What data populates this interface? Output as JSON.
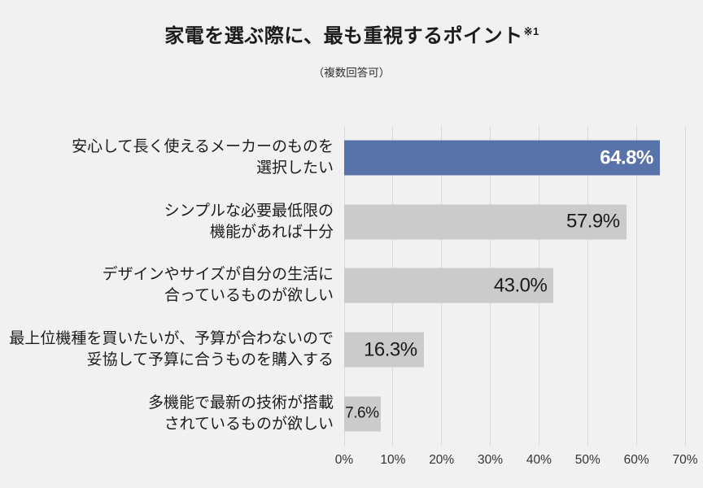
{
  "page": {
    "background": "#f1f1f1"
  },
  "header": {
    "title": "家電を選ぶ際に、最も重視するポイント",
    "title_note": "※1",
    "subtitle": "（複数回答可）"
  },
  "chart_data": {
    "type": "bar",
    "orientation": "horizontal",
    "title": "家電を選ぶ際に、最も重視するポイント※1",
    "subtitle": "（複数回答可）",
    "categories": [
      "安心して長く使えるメーカーのものを\n選択したい",
      "シンプルな必要最低限の\n機能があれば十分",
      "デザインやサイズが自分の生活に\n合っているものが欲しい",
      "最上位機種を買いたいが、予算が合わないので\n妥協して予算に合うものを購入する",
      "多機能で最新の技術が搭載\nされているものが欲しい"
    ],
    "values": [
      64.8,
      57.9,
      43.0,
      16.3,
      7.6
    ],
    "xlabel": "",
    "ylabel": "",
    "xlim": [
      0,
      70
    ],
    "x_ticks": [
      "0%",
      "10%",
      "20%",
      "30%",
      "40%",
      "50%",
      "60%",
      "70%"
    ],
    "grid": true,
    "legend": false,
    "bars": [
      {
        "category": "安心して長く使えるメーカーのものを\n選択したい",
        "value": 64.8,
        "label": "64.8%",
        "color": "#5873aa",
        "label_color": "#ffffff",
        "label_bold": true,
        "label_small": false
      },
      {
        "category": "シンプルな必要最低限の\n機能があれば十分",
        "value": 57.9,
        "label": "57.9%",
        "color": "#cbcbcb",
        "label_color": "#1a1a1a",
        "label_bold": false,
        "label_small": false
      },
      {
        "category": "デザインやサイズが自分の生活に\n合っているものが欲しい",
        "value": 43.0,
        "label": "43.0%",
        "color": "#cbcbcb",
        "label_color": "#1a1a1a",
        "label_bold": false,
        "label_small": false
      },
      {
        "category": "最上位機種を買いたいが、予算が合わないので\n妥協して予算に合うものを購入する",
        "value": 16.3,
        "label": "16.3%",
        "color": "#cbcbcb",
        "label_color": "#1a1a1a",
        "label_bold": false,
        "label_small": false
      },
      {
        "category": "多機能で最新の技術が搭載\nされているものが欲しい",
        "value": 7.6,
        "label": "7.6%",
        "color": "#cbcbcb",
        "label_color": "#1a1a1a",
        "label_bold": false,
        "label_small": true
      }
    ],
    "colors": {
      "accent_bar": "#5873aa",
      "default_bar": "#cbcbcb",
      "gridline": "#d8d8d8",
      "background": "#f1f1f1"
    },
    "highlight_index": 0
  }
}
